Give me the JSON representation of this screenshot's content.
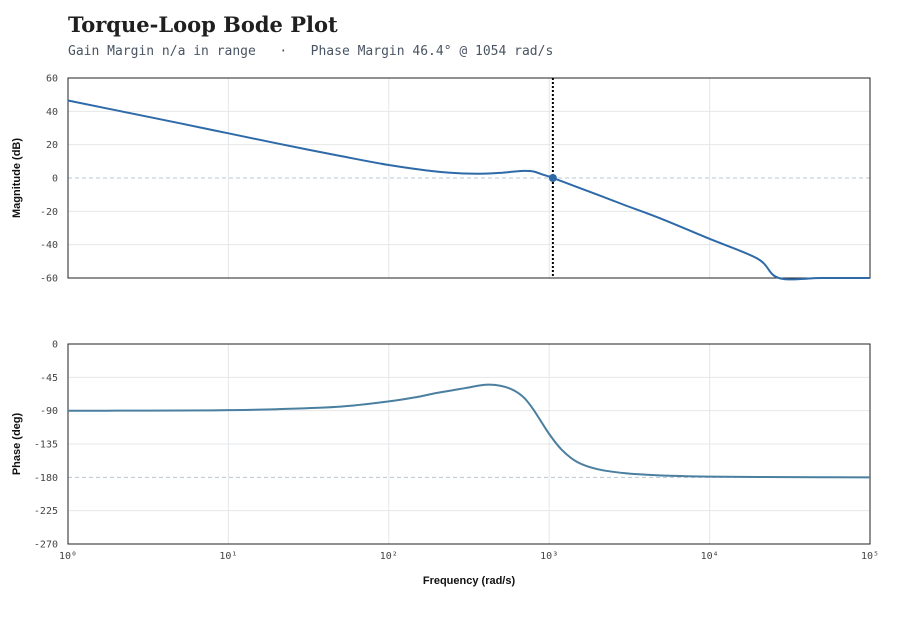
{
  "chart_data": [
    {
      "type": "line",
      "panel": "magnitude",
      "title": "Torque-Loop Bode Plot",
      "subtitle_gain": "Gain Margin n/a in range",
      "subtitle_sep": "·",
      "subtitle_phase": "Phase Margin 46.4° @ 1054 rad/s",
      "ylabel": "Magnitude (dB)",
      "xscale": "log",
      "xlim": [
        1,
        100000
      ],
      "ylim": [
        -60,
        60
      ],
      "yticks": [
        60,
        40,
        20,
        0,
        -20,
        -40,
        -60
      ],
      "ytick_labels": [
        "60",
        "40",
        "20",
        "0",
        "-20",
        "-40",
        "-60"
      ],
      "reference_line": 0,
      "crossover": {
        "x": 1054,
        "y": 0
      },
      "grid": true,
      "color": "#2e6aa8",
      "series": [
        {
          "x": [
            1,
            2,
            5,
            10,
            20,
            50,
            100,
            200,
            300,
            400,
            500,
            600,
            700,
            800,
            900,
            1000,
            1054,
            1200,
            1500,
            2000,
            3000,
            5000,
            10000,
            20000,
            27000,
            50000,
            100000
          ],
          "values": [
            46.5,
            40.6,
            32.8,
            26.8,
            20.8,
            13.2,
            7.8,
            3.8,
            2.7,
            2.6,
            3.1,
            3.8,
            4.3,
            3.9,
            2.2,
            0.9,
            0,
            -2.0,
            -5.5,
            -10.0,
            -16.5,
            -24.5,
            -36.5,
            -48.5,
            -60,
            -60,
            -60
          ]
        }
      ]
    },
    {
      "type": "line",
      "panel": "phase",
      "ylabel": "Phase (deg)",
      "xlabel": "Frequency (rad/s)",
      "xscale": "log",
      "xlim": [
        1,
        100000
      ],
      "xticks": [
        1,
        10,
        100,
        1000,
        10000,
        100000
      ],
      "xtick_labels": [
        "10⁰",
        "10¹",
        "10²",
        "10³",
        "10⁴",
        "10⁵"
      ],
      "ylim": [
        -270,
        0
      ],
      "yticks": [
        0,
        -45,
        -90,
        -135,
        -180,
        -225,
        -270
      ],
      "ytick_labels": [
        "0",
        "-45",
        "-90",
        "-135",
        "-180",
        "-225",
        "-270"
      ],
      "reference_line": -180,
      "grid": true,
      "color": "#4a7fa0",
      "series": [
        {
          "x": [
            1,
            2,
            5,
            10,
            20,
            50,
            100,
            150,
            200,
            300,
            400,
            500,
            600,
            700,
            800,
            1000,
            1200,
            1500,
            2000,
            3000,
            5000,
            10000,
            20000,
            50000,
            100000
          ],
          "values": [
            -90.2,
            -90.0,
            -89.8,
            -89.3,
            -88.0,
            -84.5,
            -77.5,
            -71.5,
            -66.0,
            -59.5,
            -55.0,
            -56.5,
            -62.5,
            -73.0,
            -89.0,
            -121.5,
            -143.0,
            -159.5,
            -169.0,
            -174.5,
            -177.5,
            -179.0,
            -179.6,
            -179.9,
            -180.0
          ]
        }
      ]
    }
  ]
}
